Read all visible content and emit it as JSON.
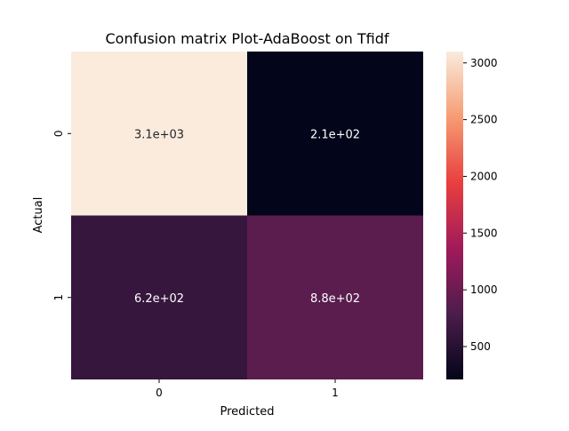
{
  "chart_data": {
    "type": "heatmap",
    "title": "Confusion matrix Plot-AdaBoost on Tfidf",
    "xlabel": "Predicted",
    "ylabel": "Actual",
    "x_categories": [
      "0",
      "1"
    ],
    "y_categories": [
      "0",
      "1"
    ],
    "values": [
      [
        3100,
        210
      ],
      [
        620,
        880
      ]
    ],
    "annotations": [
      [
        "3.1e+03",
        "2.1e+02"
      ],
      [
        "6.2e+02",
        "8.8e+02"
      ]
    ],
    "colorbar": {
      "range": [
        210,
        3100
      ],
      "ticks": [
        500,
        1000,
        1500,
        2000,
        2500,
        3000
      ],
      "tick_labels": [
        "500",
        "1000",
        "1500",
        "2000",
        "2500",
        "3000"
      ],
      "colormap": "rocket",
      "colormap_stops": [
        "#03051a",
        "#4c1d4b",
        "#a11a5b",
        "#e83f3f",
        "#f69c73",
        "#faebdd"
      ]
    },
    "grid": false
  }
}
